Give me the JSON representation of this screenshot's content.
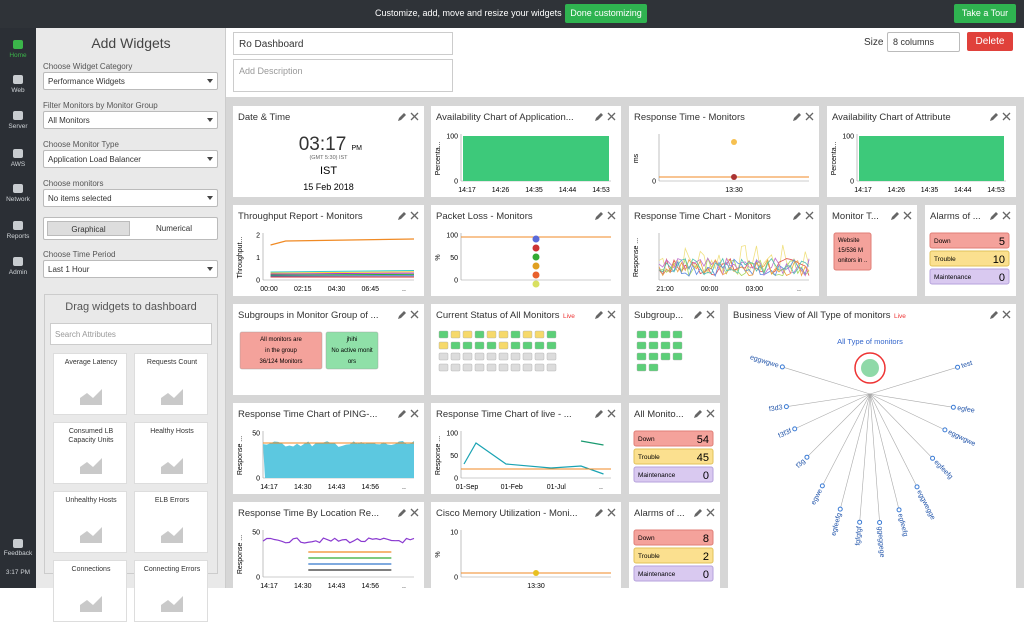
{
  "topbar": {
    "message": "Customize, add, move and resize your widgets",
    "done_button": "Done customizing",
    "tour_button": "Take a Tour"
  },
  "nav": [
    "Home",
    "Web",
    "Server",
    "AWS",
    "Network",
    "Reports",
    "Admin"
  ],
  "nav_footer": {
    "feedback": "Feedback",
    "time": "3:17 PM"
  },
  "panel": {
    "title": "Add Widgets",
    "fields": [
      {
        "label": "Choose Widget Category",
        "value": "Performance Widgets"
      },
      {
        "label": "Filter Monitors by Monitor Group",
        "value": "All Monitors"
      },
      {
        "label": "Choose Monitor Type",
        "value": "Application Load Balancer"
      },
      {
        "label": "Choose monitors",
        "value": "No items selected"
      }
    ],
    "toggle": [
      "Graphical",
      "Numerical"
    ],
    "time_field": {
      "label": "Choose Time Period",
      "value": "Last 1 Hour"
    },
    "drag_title": "Drag widgets to dashboard",
    "search_placeholder": "Search Attributes",
    "tiles": [
      "Average Latency",
      "Requests Count",
      "Consumed LB Capacity Units",
      "Healthy Hosts",
      "Unhealthy Hosts",
      "ELB Errors",
      "Connections",
      "Connecting Errors"
    ]
  },
  "dashboard": {
    "name": "Ro Dashboard",
    "description_placeholder": "Add Description",
    "size_label": "Size",
    "size_value": "8 columns",
    "delete_button": "Delete"
  },
  "widgets": [
    {
      "title": "Date & Time",
      "type": "datetime",
      "time": "03:17",
      "ampm": "PM",
      "zone_detail": "(GMT 5:30) IST",
      "zone": "IST",
      "date": "15 Feb 2018"
    },
    {
      "title": "Availability Chart of Application...",
      "type": "area",
      "y_title": "Percenta...",
      "yticks": [
        100,
        0
      ],
      "xticks": [
        "14:17",
        "14:26",
        "14:35",
        "14:44",
        "14:53"
      ]
    },
    {
      "title": "Response Time - Monitors",
      "type": "dots",
      "y_title": "ms",
      "yticks": [
        0
      ],
      "xticks": [
        "13:30"
      ]
    },
    {
      "title": "Availability Chart of Attribute",
      "type": "area",
      "y_title": "Percenta...",
      "yticks": [
        100,
        0
      ],
      "xticks": [
        "14:17",
        "14:26",
        "14:35",
        "14:44",
        "14:53"
      ]
    },
    {
      "title": "Throughput Report - Monitors",
      "type": "lines",
      "y_title": "Throughput...",
      "yticks": [
        2,
        1,
        0
      ],
      "xticks": [
        "00:00",
        "02:15",
        "04:30",
        "06:45",
        ".."
      ]
    },
    {
      "title": "Packet Loss - Monitors",
      "type": "packet",
      "y_title": "%",
      "yticks": [
        100,
        50,
        0
      ],
      "xticks": []
    },
    {
      "title": "Response Time Chart - Monitors",
      "type": "spiky",
      "y_title": "Response ...",
      "yticks": [],
      "xticks": [
        "21:00",
        "00:00",
        "03:00",
        ".."
      ]
    },
    {
      "title": "Monitor T...",
      "type": "monitor-tile",
      "lines": [
        "Website",
        "15/536 M",
        "onitors in .."
      ]
    },
    {
      "title": "Alarms of ...",
      "type": "alarms",
      "rows": [
        {
          "label": "Down",
          "count": 5
        },
        {
          "label": "Trouble",
          "count": 10
        },
        {
          "label": "Maintenance",
          "count": 0
        }
      ]
    },
    {
      "title": "Subgroups in Monitor Group of ...",
      "type": "groups",
      "tiles": [
        {
          "lines": [
            "All monitors are",
            "in the group",
            "36/124 Monitors"
          ],
          "color": "#f4a29b"
        },
        {
          "lines": [
            "jhihi",
            "No active monit",
            "ors"
          ],
          "color": "#8fe0a8"
        }
      ]
    },
    {
      "title": "Current Status of All Monitors",
      "live": "Live",
      "type": "status"
    },
    {
      "title": "Subgroup...",
      "type": "subgroup"
    },
    {
      "title": "Business View of All Type of monitors",
      "live": "Live",
      "type": "business",
      "root": "All Type of monitors",
      "leaves": [
        "eggwgwe",
        "f3d3",
        "f3f3f",
        "f3g",
        "egwe",
        "egfeefg",
        "fgfgfgf",
        "ggeggege",
        "egfeefg",
        "eggwegge",
        "egfeefg",
        "eggwgwe",
        "egfee",
        "test"
      ]
    },
    {
      "title": "Response Time Chart of PING-...",
      "type": "cyan",
      "y_title": "Response ...",
      "yticks": [
        50,
        0
      ],
      "xticks": [
        "14:17",
        "14:30",
        "14:43",
        "14:56",
        ".."
      ]
    },
    {
      "title": "Response Time Chart of live - ...",
      "type": "live",
      "y_title": "Response ...",
      "yticks": [
        100,
        50,
        0
      ],
      "xticks": [
        "01-Sep",
        "01-Feb",
        "01-Jul",
        ".."
      ]
    },
    {
      "title": "All Monito...",
      "type": "alarms",
      "rows": [
        {
          "label": "Down",
          "count": 54
        },
        {
          "label": "Trouble",
          "count": 45
        },
        {
          "label": "Maintenance",
          "count": 0
        }
      ]
    },
    {
      "title": "Response Time By Location Re...",
      "type": "multi",
      "y_title": "Response ...",
      "yticks": [
        50,
        0
      ],
      "xticks": [
        "14:17",
        "14:30",
        "14:43",
        "14:56",
        ".."
      ]
    },
    {
      "title": "Cisco Memory Utilization - Moni...",
      "type": "dots",
      "y_title": "%",
      "yticks": [
        10,
        0
      ],
      "xticks": [
        "13:30"
      ]
    },
    {
      "title": "Alarms of ...",
      "type": "alarms",
      "rows": [
        {
          "label": "Down",
          "count": 8
        },
        {
          "label": "Trouble",
          "count": 2
        },
        {
          "label": "Maintenance",
          "count": 0
        }
      ]
    }
  ]
}
